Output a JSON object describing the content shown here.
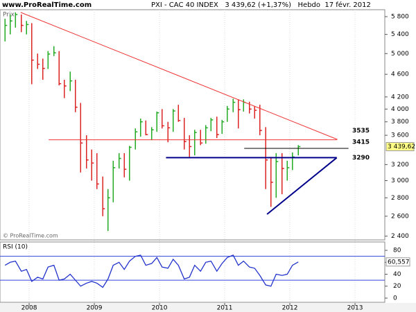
{
  "header": {
    "site": "www.ProRealTime.com",
    "title": "PXI - CAC 40 INDEX   3 439,62 (+1,37%)   Hebdo  17 févr. 2012",
    "price_label": "Prix",
    "copyright": "© ProRealTime.com"
  },
  "chart_data": [
    {
      "type": "ohlc",
      "log_scale": true,
      "x": [
        2007.63,
        2007.71,
        2007.79,
        2007.88,
        2007.96,
        2008.04,
        2008.13,
        2008.21,
        2008.29,
        2008.38,
        2008.46,
        2008.54,
        2008.63,
        2008.71,
        2008.79,
        2008.88,
        2008.96,
        2009.04,
        2009.13,
        2009.21,
        2009.29,
        2009.38,
        2009.46,
        2009.54,
        2009.63,
        2009.71,
        2009.79,
        2009.88,
        2009.96,
        2010.04,
        2010.13,
        2010.21,
        2010.29,
        2010.38,
        2010.46,
        2010.54,
        2010.63,
        2010.71,
        2010.79,
        2010.88,
        2010.96,
        2011.04,
        2011.13,
        2011.21,
        2011.29,
        2011.38,
        2011.46,
        2011.54,
        2011.63,
        2011.71,
        2011.79,
        2011.88,
        2011.96,
        2012.04,
        2012.13
      ],
      "high": [
        5750,
        5850,
        5900,
        5850,
        5700,
        5650,
        5000,
        4900,
        5050,
        5150,
        5050,
        4500,
        4650,
        4500,
        4100,
        3600,
        3400,
        3350,
        3050,
        2900,
        3250,
        3350,
        3350,
        3450,
        3700,
        3850,
        3820,
        3720,
        3960,
        4000,
        3800,
        4000,
        4070,
        3860,
        3600,
        3680,
        3680,
        3750,
        3860,
        3880,
        3830,
        4050,
        4170,
        4160,
        4160,
        4120,
        4050,
        4070,
        3720,
        3300,
        3350,
        3350,
        3250,
        3360,
        3460
      ],
      "low": [
        5250,
        5400,
        5550,
        5450,
        5400,
        4420,
        4700,
        4500,
        4700,
        4950,
        4400,
        4180,
        4300,
        3950,
        3100,
        3150,
        3000,
        2900,
        2600,
        2450,
        2750,
        3150,
        3040,
        3000,
        3400,
        3580,
        3600,
        3530,
        3650,
        3700,
        3500,
        3650,
        3800,
        3400,
        3300,
        3320,
        3460,
        3480,
        3660,
        3560,
        3620,
        3800,
        3950,
        3700,
        3960,
        3930,
        3850,
        3600,
        2900,
        2700,
        2800,
        2840,
        3000,
        3130,
        3320
      ],
      "close": [
        5600,
        5700,
        5850,
        5600,
        5620,
        4870,
        4790,
        4710,
        4990,
        5015,
        4430,
        4390,
        4480,
        4030,
        3490,
        3260,
        3220,
        2960,
        2680,
        2800,
        3160,
        3280,
        3140,
        3430,
        3650,
        3800,
        3610,
        3680,
        3940,
        3740,
        3710,
        3970,
        3820,
        3510,
        3440,
        3640,
        3490,
        3710,
        3830,
        3610,
        3800,
        4000,
        4110,
        3990,
        4110,
        4000,
        3980,
        3670,
        3260,
        2980,
        3240,
        3150,
        3160,
        3300,
        3439.62
      ],
      "last_label": "3 439,62",
      "up_color": "#22aa22",
      "down_color": "#dd2222",
      "xlim": [
        2007.553,
        2013.457
      ],
      "xticks": [
        2008,
        2009,
        2010,
        2011,
        2012,
        2013
      ],
      "ylim": [
        2364,
        5964
      ],
      "yticks": [
        {
          "value": 2400,
          "label": "2 400"
        },
        {
          "value": 2600,
          "label": "2 600"
        },
        {
          "value": 2800,
          "label": "2 800"
        },
        {
          "value": 3000,
          "label": "3 000"
        },
        {
          "value": 3200,
          "label": "3 200"
        },
        {
          "value": 3600,
          "label": "3 600"
        },
        {
          "value": 3800,
          "label": "3 800"
        },
        {
          "value": 4000,
          "label": "4 000"
        },
        {
          "value": 4200,
          "label": "4 200"
        },
        {
          "value": 4600,
          "label": "4 600"
        },
        {
          "value": 5000,
          "label": "5 000"
        },
        {
          "value": 5400,
          "label": "5 400"
        },
        {
          "value": 5800,
          "label": "5 800"
        }
      ],
      "trendlines": [
        {
          "x": [
            2007.87,
            2012.73
          ],
          "y": [
            5900,
            3540
          ],
          "color": "#ee3333"
        },
        {
          "x": [
            2011.65,
            2012.72
          ],
          "y": [
            2621,
            3290
          ],
          "color": "#00008b"
        }
      ],
      "levels": [
        {
          "y": 3535,
          "x": [
            2008.3,
            2012.72
          ],
          "color": "#ee3333"
        },
        {
          "y": 3415,
          "x": [
            2011.3,
            2012.9
          ],
          "color": "#000000"
        },
        {
          "y": 3290,
          "x": [
            2010.1,
            2012.72
          ],
          "color": "#00008b"
        }
      ]
    },
    {
      "type": "line",
      "name": "RSI (10)",
      "color": "#2233cc",
      "values": [
        55,
        60,
        62,
        45,
        48,
        28,
        35,
        32,
        52,
        55,
        30,
        32,
        40,
        30,
        20,
        25,
        28,
        25,
        18,
        32,
        55,
        60,
        48,
        62,
        70,
        72,
        55,
        58,
        68,
        52,
        50,
        65,
        55,
        32,
        35,
        55,
        45,
        60,
        62,
        45,
        58,
        68,
        72,
        55,
        62,
        52,
        50,
        38,
        22,
        20,
        40,
        38,
        40,
        55,
        60.557
      ],
      "last_label": "60,557",
      "bands": [
        30,
        70
      ],
      "band_color": "#3344dd",
      "ylim": [
        -7,
        94
      ],
      "yticks": [
        0,
        20,
        40,
        60,
        80
      ]
    }
  ]
}
